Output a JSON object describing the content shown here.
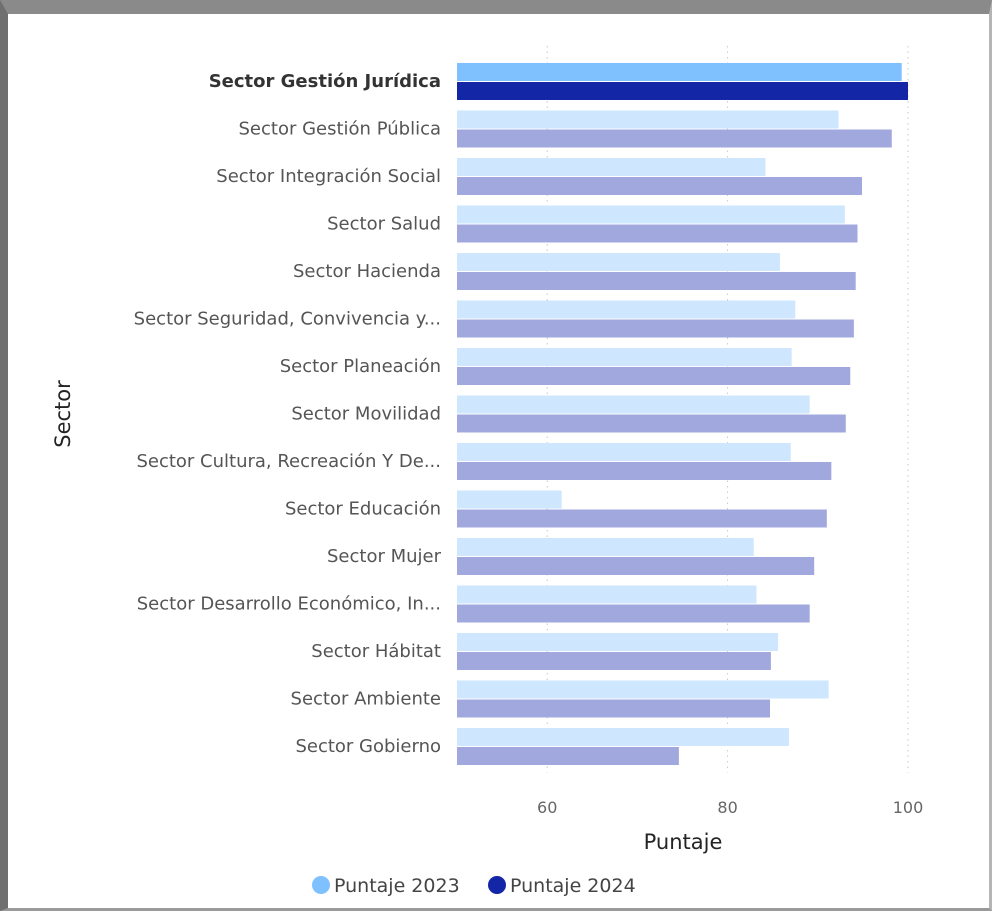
{
  "chart_data": {
    "type": "bar",
    "orientation": "horizontal",
    "xlabel": "Puntaje",
    "ylabel": "Sector",
    "xlim": [
      50,
      100
    ],
    "xticks": [
      "60",
      "80",
      "100"
    ],
    "grid": "vertical-dotted",
    "legend_position": "bottom",
    "categories": [
      "Sector Gestión Jurídica",
      "Sector Gestión Pública",
      "Sector Integración Social",
      "Sector Salud",
      "Sector Hacienda",
      "Sector Seguridad, Convivencia y...",
      "Sector Planeación",
      "Sector Movilidad",
      "Sector Cultura, Recreación Y De...",
      "Sector Educación",
      "Sector Mujer",
      "Sector Desarrollo Económico, In...",
      "Sector Hábitat",
      "Sector Ambiente",
      "Sector Gobierno"
    ],
    "highlighted_index": 0,
    "series": [
      {
        "name": "Puntaje 2023",
        "color": "#7fc1ff",
        "dim_color": "#cfe6ff",
        "values": [
          99.3,
          92.3,
          84.2,
          93.0,
          85.8,
          87.5,
          87.1,
          89.1,
          87.0,
          61.6,
          82.9,
          83.2,
          85.6,
          91.2,
          86.8
        ]
      },
      {
        "name": "Puntaje 2024",
        "color": "#1226a6",
        "dim_color": "#a1a8dd",
        "values": [
          100.0,
          98.2,
          94.9,
          94.4,
          94.2,
          94.0,
          93.6,
          93.1,
          91.5,
          91.0,
          89.6,
          89.1,
          84.8,
          84.7,
          74.6
        ]
      }
    ]
  }
}
